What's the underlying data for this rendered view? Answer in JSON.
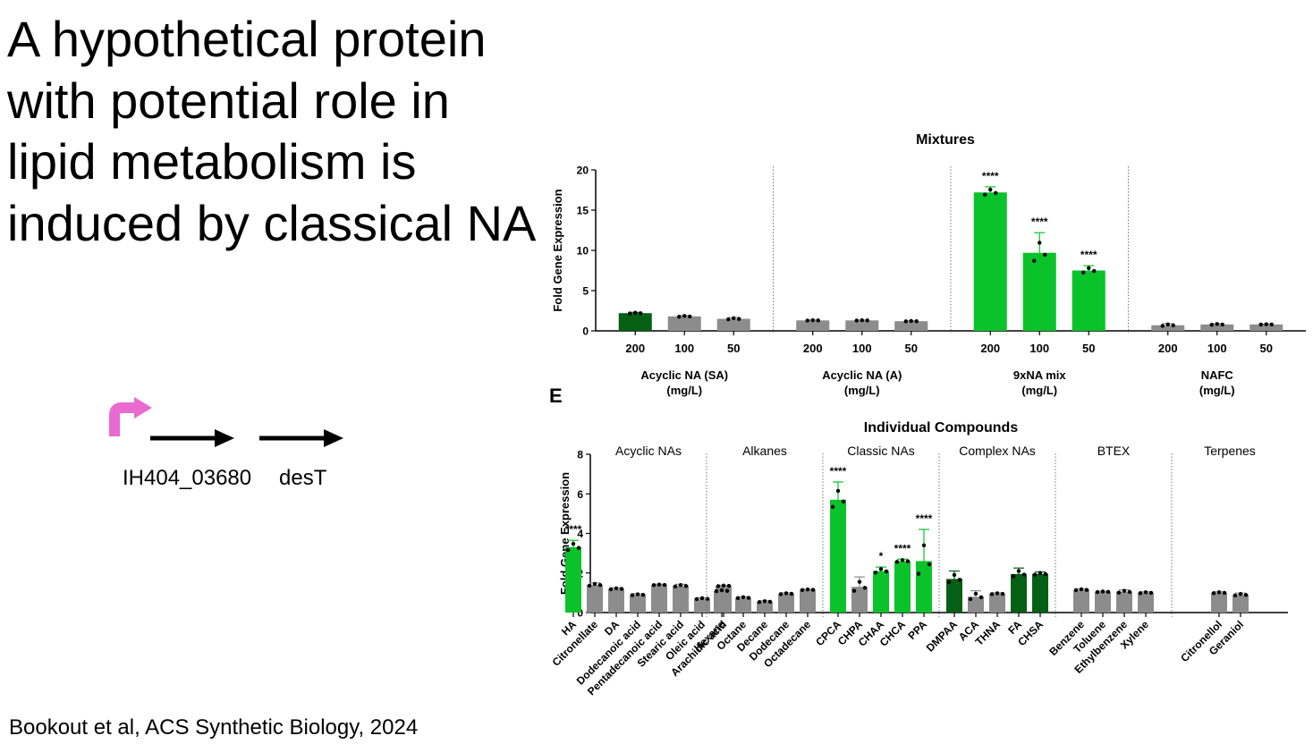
{
  "slide": {
    "title": "A hypothetical protein with potential role in lipid metabolism is induced by classical NA",
    "citation": "Bookout et al, ACS Synthetic Biology, 2024",
    "genes": [
      "IH404_03680",
      "desT"
    ],
    "panel_label": "E"
  },
  "colors": {
    "bright_green": "#0ac22a",
    "dark_green": "#055f14",
    "gray": "#8c8c8c",
    "promoter": "#e96ad0"
  },
  "chart_data": [
    {
      "type": "bar",
      "title": "Mixtures",
      "ylabel": "Fold Gene Expression",
      "ylim": [
        0,
        20
      ],
      "yticks": [
        0,
        5,
        10,
        15,
        20
      ],
      "groups": [
        {
          "label": "Acyclic NA (SA)\n(mg/L)",
          "categories": [
            "200",
            "100",
            "50"
          ],
          "values": [
            2.2,
            1.8,
            1.5
          ],
          "errors": [
            0.1,
            0.1,
            0.15
          ],
          "stars": [
            "",
            "",
            ""
          ],
          "colors": [
            "dark",
            "gray",
            "gray"
          ]
        },
        {
          "label": "Acyclic NA (A)\n(mg/L)",
          "categories": [
            "200",
            "100",
            "50"
          ],
          "values": [
            1.3,
            1.3,
            1.2
          ],
          "errors": [
            0.05,
            0.05,
            0.05
          ],
          "stars": [
            "",
            "",
            ""
          ],
          "colors": [
            "gray",
            "gray",
            "gray"
          ]
        },
        {
          "label": "9xNA mix\n(mg/L)",
          "categories": [
            "200",
            "100",
            "50"
          ],
          "values": [
            17.2,
            9.7,
            7.5
          ],
          "errors": [
            0.7,
            2.5,
            0.6
          ],
          "stars": [
            "****",
            "****",
            "****"
          ],
          "colors": [
            "bright",
            "bright",
            "bright"
          ]
        },
        {
          "label": "NAFC\n(mg/L)",
          "categories": [
            "200",
            "100",
            "50"
          ],
          "values": [
            0.7,
            0.8,
            0.8
          ],
          "errors": [
            0.2,
            0.1,
            0.05
          ],
          "stars": [
            "",
            "",
            ""
          ],
          "colors": [
            "gray",
            "gray",
            "gray"
          ]
        }
      ]
    },
    {
      "type": "bar",
      "title": "Individual Compounds",
      "ylabel": "Fold Gene Expression",
      "ylim": [
        0,
        8
      ],
      "yticks": [
        0,
        2,
        4,
        6,
        8
      ],
      "groups": [
        {
          "label": "Acyclic NAs",
          "categories": [
            "HA",
            "Citronellate",
            "DA",
            "Dodecanoic acid",
            "Pentadecanoic acid",
            "Stearic acid",
            "Oleic acid",
            "Arachidic acid"
          ],
          "values": [
            3.3,
            1.4,
            1.2,
            0.9,
            1.4,
            1.35,
            0.7,
            1.35
          ],
          "errors": [
            0.35,
            0.1,
            0.05,
            0.05,
            0.03,
            0.08,
            0.05,
            0.03
          ],
          "stars": [
            "****",
            "",
            "",
            "",
            "",
            "",
            "",
            ""
          ],
          "colors": [
            "bright",
            "gray",
            "gray",
            "gray",
            "gray",
            "gray",
            "gray",
            "gray"
          ]
        },
        {
          "label": "Alkanes",
          "categories": [
            "Hexane",
            "Octane",
            "Decane",
            "Dodecane",
            "Octadecane"
          ],
          "values": [
            1.1,
            0.75,
            0.55,
            0.95,
            1.15
          ],
          "errors": [
            0.05,
            0.05,
            0.05,
            0.05,
            0.03
          ],
          "stars": [
            "",
            "",
            "",
            "",
            ""
          ],
          "colors": [
            "gray",
            "gray",
            "gray",
            "gray",
            "gray"
          ]
        },
        {
          "label": "Classic NAs",
          "categories": [
            "CPCA",
            "CHPA",
            "CHAA",
            "CHCA",
            "PPA"
          ],
          "values": [
            5.7,
            1.3,
            2.1,
            2.6,
            2.6
          ],
          "errors": [
            0.9,
            0.5,
            0.2,
            0.1,
            1.6
          ],
          "stars": [
            "****",
            "",
            "*",
            "****",
            "****"
          ],
          "colors": [
            "bright",
            "gray",
            "bright",
            "bright",
            "bright"
          ]
        },
        {
          "label": "Complex NAs",
          "categories": [
            "DMPAA",
            "ACA",
            "THNA",
            "FA",
            "CHSA"
          ],
          "values": [
            1.7,
            0.8,
            0.95,
            1.95,
            1.95
          ],
          "errors": [
            0.4,
            0.3,
            0.05,
            0.3,
            0.1
          ],
          "stars": [
            "",
            "",
            "",
            "",
            ""
          ],
          "colors": [
            "dark",
            "gray",
            "gray",
            "dark",
            "dark"
          ]
        },
        {
          "label": "BTEX",
          "categories": [
            "Benzene",
            "Toluene",
            "Ethylbenzene",
            "Xylene"
          ],
          "values": [
            1.15,
            1.05,
            1.05,
            1.0
          ],
          "errors": [
            0.05,
            0.03,
            0.1,
            0.05
          ],
          "stars": [
            "",
            "",
            "",
            ""
          ],
          "colors": [
            "gray",
            "gray",
            "gray",
            "gray"
          ]
        },
        {
          "label": "Terpenes",
          "categories": [
            "Citronellol",
            "Geraniol"
          ],
          "values": [
            1.0,
            0.9
          ],
          "errors": [
            0.05,
            0.08
          ],
          "stars": [
            "",
            ""
          ],
          "colors": [
            "gray",
            "gray"
          ]
        }
      ]
    }
  ]
}
